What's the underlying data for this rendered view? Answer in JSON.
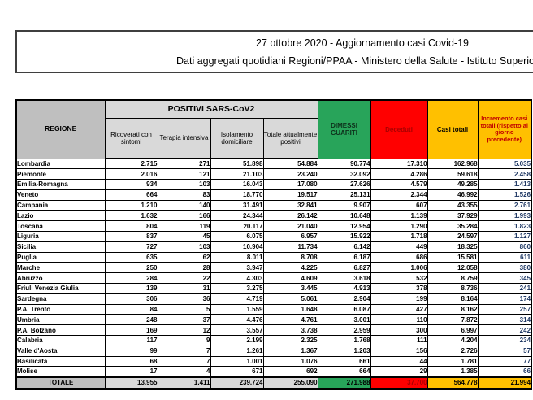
{
  "header": {
    "line1": "27 ottobre 2020 - Aggiornamento casi Covid-19",
    "line2": "Dati aggregati quotidiani Regioni/PPAA - Ministero della Salute - Istituto Superiore di Sanità"
  },
  "chart_data": {
    "type": "table",
    "title": "27 ottobre 2020 - Aggiornamento casi Covid-19",
    "group_header": "POSITIVI SARS-CoV2",
    "columns": [
      "REGIONE",
      "Ricoverati con sintomi",
      "Terapia intensiva",
      "Isolamento domiciliare",
      "Totale attualmente positivi",
      "DIMESSI GUARITI",
      "Deceduti",
      "Casi totali",
      "Incremento casi totali (rispetto al giorno precedente)"
    ],
    "rows": [
      [
        "Lombardia",
        "2.715",
        "271",
        "51.898",
        "54.884",
        "90.774",
        "17.310",
        "162.968",
        "5.035"
      ],
      [
        "Piemonte",
        "2.016",
        "121",
        "21.103",
        "23.240",
        "32.092",
        "4.286",
        "59.618",
        "2.458"
      ],
      [
        "Emilia-Romagna",
        "934",
        "103",
        "16.043",
        "17.080",
        "27.626",
        "4.579",
        "49.285",
        "1.413"
      ],
      [
        "Veneto",
        "664",
        "83",
        "18.770",
        "19.517",
        "25.131",
        "2.344",
        "46.992",
        "1.526"
      ],
      [
        "Campania",
        "1.210",
        "140",
        "31.491",
        "32.841",
        "9.907",
        "607",
        "43.355",
        "2.761"
      ],
      [
        "Lazio",
        "1.632",
        "166",
        "24.344",
        "26.142",
        "10.648",
        "1.139",
        "37.929",
        "1.993"
      ],
      [
        "Toscana",
        "804",
        "119",
        "20.117",
        "21.040",
        "12.954",
        "1.290",
        "35.284",
        "1.823"
      ],
      [
        "Liguria",
        "837",
        "45",
        "6.075",
        "6.957",
        "15.922",
        "1.718",
        "24.597",
        "1.127"
      ],
      [
        "Sicilia",
        "727",
        "103",
        "10.904",
        "11.734",
        "6.142",
        "449",
        "18.325",
        "860"
      ],
      [
        "Puglia",
        "635",
        "62",
        "8.011",
        "8.708",
        "6.187",
        "686",
        "15.581",
        "611"
      ],
      [
        "Marche",
        "250",
        "28",
        "3.947",
        "4.225",
        "6.827",
        "1.006",
        "12.058",
        "380"
      ],
      [
        "Abruzzo",
        "284",
        "22",
        "4.303",
        "4.609",
        "3.618",
        "532",
        "8.759",
        "345"
      ],
      [
        "Friuli Venezia Giulia",
        "139",
        "31",
        "3.275",
        "3.445",
        "4.913",
        "378",
        "8.736",
        "241"
      ],
      [
        "Sardegna",
        "306",
        "36",
        "4.719",
        "5.061",
        "2.904",
        "199",
        "8.164",
        "174"
      ],
      [
        "P.A. Trento",
        "84",
        "5",
        "1.559",
        "1.648",
        "6.087",
        "427",
        "8.162",
        "257"
      ],
      [
        "Umbria",
        "248",
        "37",
        "4.476",
        "4.761",
        "3.001",
        "110",
        "7.872",
        "314"
      ],
      [
        "P.A. Bolzano",
        "169",
        "12",
        "3.557",
        "3.738",
        "2.959",
        "300",
        "6.997",
        "242"
      ],
      [
        "Calabria",
        "117",
        "9",
        "2.199",
        "2.325",
        "1.768",
        "111",
        "4.204",
        "234"
      ],
      [
        "Valle d'Aosta",
        "99",
        "7",
        "1.261",
        "1.367",
        "1.203",
        "156",
        "2.726",
        "57"
      ],
      [
        "Basilicata",
        "68",
        "7",
        "1.001",
        "1.076",
        "661",
        "44",
        "1.781",
        "77"
      ],
      [
        "Molise",
        "17",
        "4",
        "671",
        "692",
        "664",
        "29",
        "1.385",
        "66"
      ]
    ],
    "total_row": [
      "TOTALE",
      "13.955",
      "1.411",
      "239.724",
      "255.090",
      "271.988",
      "37.700",
      "564.778",
      "21.994"
    ]
  },
  "colors": {
    "green": "#28A45A",
    "red": "#FF0000",
    "gold": "#FFC000",
    "header_gray": "#BFBFBF",
    "light_gray": "#D9D9D9",
    "dark_red_text": "#A80000",
    "red_header_text": "#C00000",
    "navy_increment_text": "#1F3864"
  }
}
